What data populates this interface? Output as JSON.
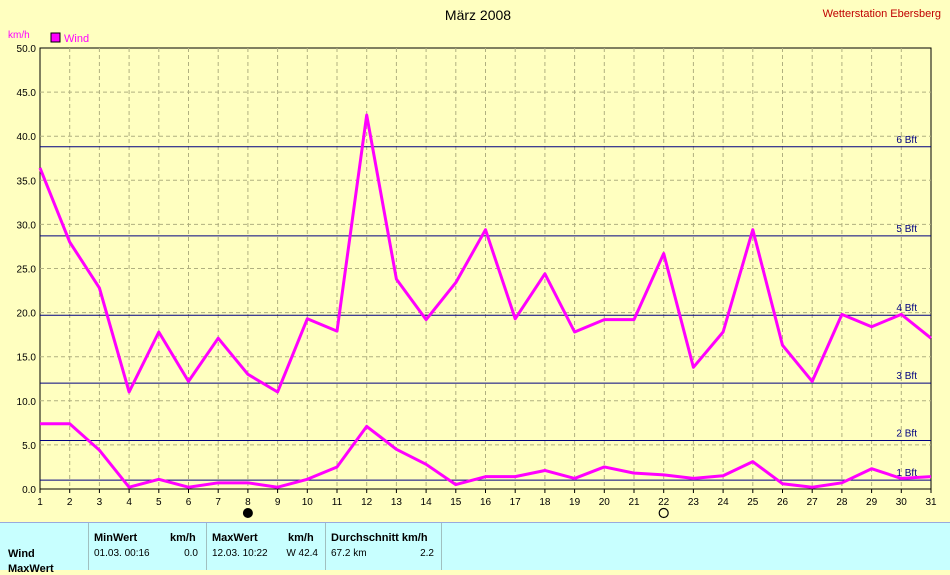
{
  "title": "März 2008",
  "station": "Wetterstation Ebersberg",
  "unit": "km/h",
  "legend": {
    "label": "Wind",
    "color": "#ff00ff"
  },
  "moon_phases": [
    {
      "day": 8,
      "phase": "new-moon-icon"
    },
    {
      "day": 22,
      "phase": "full-moon-icon"
    }
  ],
  "chart_data": {
    "type": "line",
    "x": [
      1,
      2,
      3,
      4,
      5,
      6,
      7,
      8,
      9,
      10,
      11,
      12,
      13,
      14,
      15,
      16,
      17,
      18,
      19,
      20,
      21,
      22,
      23,
      24,
      25,
      26,
      27,
      28,
      29,
      30,
      31
    ],
    "x_ticks": [
      "1",
      "2",
      "3",
      "4",
      "5",
      "6",
      "7",
      "8",
      "9",
      "10",
      "11",
      "12",
      "13",
      "14",
      "15",
      "16",
      "17",
      "18",
      "19",
      "20",
      "21",
      "22",
      "23",
      "24",
      "25",
      "26",
      "27",
      "28",
      "29",
      "30",
      "31"
    ],
    "ylim": [
      0,
      50
    ],
    "y_ticks": [
      "0.0",
      "5.0",
      "10.0",
      "15.0",
      "20.0",
      "25.0",
      "30.0",
      "35.0",
      "40.0",
      "45.0",
      "50.0"
    ],
    "ylabel": "km/h",
    "grid": true,
    "legend_position": "top-left",
    "series": [
      {
        "name": "Wind",
        "color": "#ff00ff",
        "values": [
          36.4,
          28.0,
          22.8,
          11.0,
          17.8,
          12.2,
          17.1,
          13.0,
          11.0,
          19.3,
          17.9,
          42.4,
          23.8,
          19.2,
          23.4,
          29.4,
          19.3,
          24.4,
          17.8,
          19.2,
          19.2,
          26.7,
          13.8,
          17.8,
          29.4,
          16.3,
          12.2,
          19.8,
          18.4,
          19.8,
          17.1
        ]
      },
      {
        "values": [
          7.4,
          7.4,
          4.4,
          0.2,
          1.1,
          0.2,
          0.7,
          0.7,
          0.2,
          1.1,
          2.5,
          7.1,
          4.5,
          2.8,
          0.5,
          1.4,
          1.4,
          2.1,
          1.2,
          2.5,
          1.8,
          1.6,
          1.2,
          1.5,
          3.1,
          0.6,
          0.2,
          0.7,
          2.3,
          1.2,
          1.4
        ]
      }
    ],
    "reference_lines": [
      {
        "label": "1 Bft",
        "value": 1.0
      },
      {
        "label": "2 Bft",
        "value": 5.5
      },
      {
        "label": "3 Bft",
        "value": 12.0
      },
      {
        "label": "4 Bft",
        "value": 19.7
      },
      {
        "label": "5 Bft",
        "value": 28.7
      },
      {
        "label": "6 Bft",
        "value": 38.8
      }
    ]
  },
  "summary": {
    "row_label": "Wind",
    "row2_label": "MaxWert",
    "min_header": "MinWert",
    "max_header": "MaxWert",
    "avg_header": "Durchschnitt km/h",
    "unit_header": "km/h",
    "min_time": "01.03.  00:16",
    "min_value": "0.0",
    "max_time": "12.03.  10:22",
    "max_value": "W 42.4",
    "avg_distance": "67.2 km",
    "avg_value": "2.2"
  }
}
